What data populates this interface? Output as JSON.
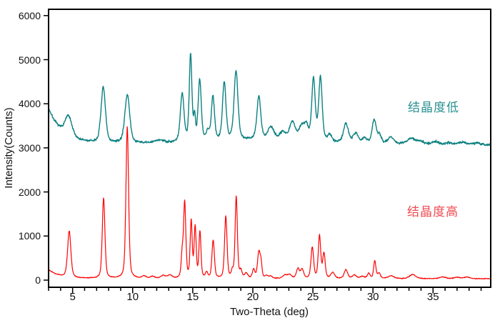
{
  "figure": {
    "background": "#ffffff",
    "frame_color": "#000000"
  },
  "axes": {
    "x_label": "Two-Theta (deg)",
    "y_label": "Intensity(Counts)",
    "x_range": [
      3,
      39.8
    ],
    "y_range": [
      0,
      6000
    ],
    "x_major_ticks": [
      5,
      10,
      15,
      20,
      25,
      30,
      35
    ],
    "x_minor_step": 1,
    "y_major_ticks": [
      0,
      1000,
      2000,
      3000,
      4000,
      5000,
      6000
    ],
    "grid": "off",
    "tick_direction": "out"
  },
  "chart_data": {
    "type": "line",
    "title": "",
    "xlabel": "Two-Theta (deg)",
    "ylabel": "Intensity(Counts)",
    "xlim": [
      3,
      39.8
    ],
    "ylim": [
      0,
      6000
    ],
    "legend_position": "inside-right",
    "description": "Powder XRD patterns: upper teal trace (low crystallinity, broad peaks, baseline ~3100 counts) and lower red trace (high crystallinity, sharp peaks, baseline ~40 counts). Peaks listed as [two_theta_deg, peak_height_counts_above_baseline, half_width_deg].",
    "series": [
      {
        "name": "结晶度低",
        "color": "#0e8181",
        "label_color": "#2a9090",
        "line_width": 1.4,
        "noise_amp": 26,
        "seed": 7,
        "baseline": {
          "base": 3100,
          "decay_amp": 800,
          "decay_tau": 1.1,
          "hump_amp": 80,
          "hump_center": 20,
          "hump_sigma": 5.5,
          "tail_slope": 2.5,
          "tail_start": 26
        },
        "peaks": [
          [
            4.65,
            450,
            0.35
          ],
          [
            7.55,
            1250,
            0.22
          ],
          [
            9.55,
            1100,
            0.24
          ],
          [
            12.2,
            60,
            0.4
          ],
          [
            14.12,
            1080,
            0.18
          ],
          [
            14.82,
            1950,
            0.13
          ],
          [
            15.15,
            520,
            0.09
          ],
          [
            15.58,
            1380,
            0.15
          ],
          [
            16.25,
            200,
            0.15
          ],
          [
            16.68,
            1000,
            0.15
          ],
          [
            17.62,
            1300,
            0.17
          ],
          [
            18.6,
            1560,
            0.19
          ],
          [
            20.5,
            970,
            0.19
          ],
          [
            21.5,
            280,
            0.3
          ],
          [
            22.5,
            180,
            0.3
          ],
          [
            23.3,
            420,
            0.28
          ],
          [
            24.05,
            300,
            0.25
          ],
          [
            24.45,
            320,
            0.22
          ],
          [
            25.05,
            1400,
            0.17
          ],
          [
            25.63,
            1440,
            0.17
          ],
          [
            26.4,
            150,
            0.2
          ],
          [
            27.75,
            430,
            0.24
          ],
          [
            28.55,
            220,
            0.25
          ],
          [
            29.3,
            100,
            0.25
          ],
          [
            30.1,
            540,
            0.2
          ],
          [
            30.55,
            180,
            0.18
          ],
          [
            31.5,
            150,
            0.3
          ],
          [
            33.2,
            130,
            0.4
          ],
          [
            34.0,
            60,
            0.3
          ],
          [
            35.2,
            60,
            0.35
          ],
          [
            36.3,
            40,
            0.3
          ],
          [
            37.5,
            60,
            0.4
          ],
          [
            38.7,
            40,
            0.35
          ]
        ]
      },
      {
        "name": "结晶度高",
        "color": "#fd0303",
        "label_color": "#ef4a50",
        "line_width": 1.2,
        "noise_amp": 9,
        "seed": 23,
        "baseline": {
          "base": 35,
          "decay_amp": 200,
          "decay_tau": 0.9,
          "hump_amp": 0,
          "hump_center": 0,
          "hump_sigma": 1,
          "tail_slope": 0.3,
          "tail_start": 26
        },
        "peaks": [
          [
            4.72,
            1050,
            0.16
          ],
          [
            7.58,
            1820,
            0.13
          ],
          [
            9.55,
            3440,
            0.13
          ],
          [
            10.95,
            55,
            0.2
          ],
          [
            11.65,
            45,
            0.2
          ],
          [
            12.55,
            65,
            0.25
          ],
          [
            13.1,
            70,
            0.2
          ],
          [
            14.12,
            500,
            0.1
          ],
          [
            14.33,
            1700,
            0.11
          ],
          [
            14.87,
            1280,
            0.1
          ],
          [
            15.2,
            1150,
            0.1
          ],
          [
            15.6,
            1040,
            0.1
          ],
          [
            16.15,
            120,
            0.12
          ],
          [
            16.7,
            860,
            0.12
          ],
          [
            17.75,
            1400,
            0.12
          ],
          [
            18.3,
            150,
            0.1
          ],
          [
            18.62,
            1850,
            0.11
          ],
          [
            19.0,
            160,
            0.12
          ],
          [
            19.45,
            110,
            0.15
          ],
          [
            20.07,
            200,
            0.12
          ],
          [
            20.5,
            580,
            0.13
          ],
          [
            20.68,
            300,
            0.1
          ],
          [
            21.15,
            60,
            0.15
          ],
          [
            21.5,
            50,
            0.15
          ],
          [
            22.65,
            70,
            0.2
          ],
          [
            23.05,
            90,
            0.2
          ],
          [
            23.75,
            215,
            0.15
          ],
          [
            24.1,
            200,
            0.15
          ],
          [
            24.95,
            700,
            0.13
          ],
          [
            25.55,
            960,
            0.12
          ],
          [
            25.92,
            560,
            0.12
          ],
          [
            26.65,
            130,
            0.18
          ],
          [
            27.75,
            200,
            0.17
          ],
          [
            28.45,
            75,
            0.2
          ],
          [
            29.1,
            45,
            0.2
          ],
          [
            29.65,
            115,
            0.14
          ],
          [
            30.15,
            400,
            0.11
          ],
          [
            30.5,
            120,
            0.14
          ],
          [
            31.5,
            60,
            0.3
          ],
          [
            33.3,
            95,
            0.3
          ],
          [
            35.8,
            40,
            0.3
          ],
          [
            37.0,
            30,
            0.3
          ],
          [
            37.8,
            35,
            0.3
          ]
        ]
      }
    ]
  }
}
